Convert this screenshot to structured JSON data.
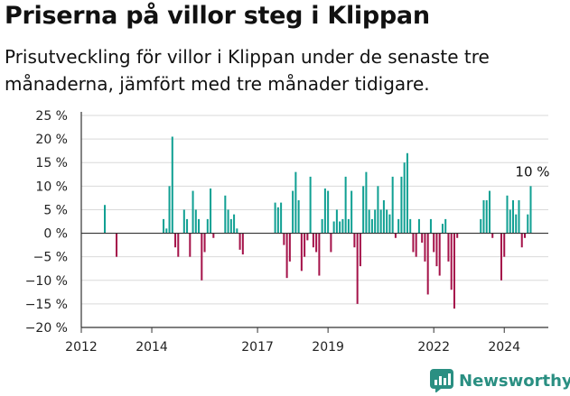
{
  "title": "Priserna på villor steg i Klippan",
  "subtitle": "Prisutveckling för villor i Klippan under de senaste tre månaderna, jämfört med tre månader tidigare.",
  "brand": {
    "name": "Newsworthy",
    "color": "#2a8f82"
  },
  "colors": {
    "positive": "#11a093",
    "negative": "#a5134a",
    "grid": "#d9d9d9",
    "axis": "#333333"
  },
  "chart_data": {
    "type": "bar",
    "title": "Priserna på villor steg i Klippan",
    "xlabel": "",
    "ylabel": "",
    "ylim": [
      -20,
      25
    ],
    "yticks": [
      25,
      20,
      15,
      10,
      5,
      0,
      -5,
      -10,
      -15,
      -20
    ],
    "ytick_labels": [
      "25 %",
      "20 %",
      "15 %",
      "10 %",
      "5 %",
      "0 %",
      "−5 %",
      "−10 %",
      "−15 %",
      "−20 %"
    ],
    "xlim": [
      "2012-01",
      "2025-04"
    ],
    "xticks": [
      "2012",
      "2014",
      "2017",
      "2019",
      "2022",
      "2024"
    ],
    "grid": true,
    "annotation": {
      "text": "10 %",
      "x": "2024-10"
    },
    "points": [
      {
        "x": "2012-09",
        "y": 6
      },
      {
        "x": "2013-01",
        "y": -5
      },
      {
        "x": "2014-05",
        "y": 3
      },
      {
        "x": "2014-06",
        "y": 1
      },
      {
        "x": "2014-07",
        "y": 10
      },
      {
        "x": "2014-08",
        "y": 20.5
      },
      {
        "x": "2014-09",
        "y": -3
      },
      {
        "x": "2014-10",
        "y": -5
      },
      {
        "x": "2014-12",
        "y": 5
      },
      {
        "x": "2015-01",
        "y": 3
      },
      {
        "x": "2015-02",
        "y": -5
      },
      {
        "x": "2015-03",
        "y": 9
      },
      {
        "x": "2015-04",
        "y": 5
      },
      {
        "x": "2015-05",
        "y": 3
      },
      {
        "x": "2015-06",
        "y": -10
      },
      {
        "x": "2015-07",
        "y": -4
      },
      {
        "x": "2015-08",
        "y": 3
      },
      {
        "x": "2015-09",
        "y": 9.5
      },
      {
        "x": "2015-10",
        "y": -1
      },
      {
        "x": "2016-02",
        "y": 8
      },
      {
        "x": "2016-03",
        "y": 5
      },
      {
        "x": "2016-04",
        "y": 3
      },
      {
        "x": "2016-05",
        "y": 4
      },
      {
        "x": "2016-06",
        "y": 1
      },
      {
        "x": "2016-07",
        "y": -3.5
      },
      {
        "x": "2016-08",
        "y": -4.5
      },
      {
        "x": "2017-07",
        "y": 6.5
      },
      {
        "x": "2017-08",
        "y": 5.5
      },
      {
        "x": "2017-09",
        "y": 6.5
      },
      {
        "x": "2017-10",
        "y": -2.5
      },
      {
        "x": "2017-11",
        "y": -9.5
      },
      {
        "x": "2017-12",
        "y": -6
      },
      {
        "x": "2018-01",
        "y": 9
      },
      {
        "x": "2018-02",
        "y": 13
      },
      {
        "x": "2018-03",
        "y": 7
      },
      {
        "x": "2018-04",
        "y": -8
      },
      {
        "x": "2018-05",
        "y": -5
      },
      {
        "x": "2018-06",
        "y": -1.5
      },
      {
        "x": "2018-07",
        "y": 12
      },
      {
        "x": "2018-08",
        "y": -3
      },
      {
        "x": "2018-09",
        "y": -4
      },
      {
        "x": "2018-10",
        "y": -9
      },
      {
        "x": "2018-11",
        "y": 3
      },
      {
        "x": "2018-12",
        "y": 9.5
      },
      {
        "x": "2019-01",
        "y": 9
      },
      {
        "x": "2019-02",
        "y": -4
      },
      {
        "x": "2019-03",
        "y": 2.5
      },
      {
        "x": "2019-04",
        "y": 5
      },
      {
        "x": "2019-05",
        "y": 2.5
      },
      {
        "x": "2019-06",
        "y": 3
      },
      {
        "x": "2019-07",
        "y": 12
      },
      {
        "x": "2019-08",
        "y": 3
      },
      {
        "x": "2019-09",
        "y": 9
      },
      {
        "x": "2019-10",
        "y": -3
      },
      {
        "x": "2019-11",
        "y": -15
      },
      {
        "x": "2019-12",
        "y": -7
      },
      {
        "x": "2020-01",
        "y": 10
      },
      {
        "x": "2020-02",
        "y": 13
      },
      {
        "x": "2020-03",
        "y": 5
      },
      {
        "x": "2020-04",
        "y": 3
      },
      {
        "x": "2020-05",
        "y": 5
      },
      {
        "x": "2020-06",
        "y": 10
      },
      {
        "x": "2020-07",
        "y": 5
      },
      {
        "x": "2020-08",
        "y": 7
      },
      {
        "x": "2020-09",
        "y": 5
      },
      {
        "x": "2020-10",
        "y": 4
      },
      {
        "x": "2020-11",
        "y": 12
      },
      {
        "x": "2020-12",
        "y": -1
      },
      {
        "x": "2021-01",
        "y": 3
      },
      {
        "x": "2021-02",
        "y": 12
      },
      {
        "x": "2021-03",
        "y": 15
      },
      {
        "x": "2021-04",
        "y": 17
      },
      {
        "x": "2021-05",
        "y": 3
      },
      {
        "x": "2021-06",
        "y": -4
      },
      {
        "x": "2021-07",
        "y": -5
      },
      {
        "x": "2021-08",
        "y": 3
      },
      {
        "x": "2021-09",
        "y": -2
      },
      {
        "x": "2021-10",
        "y": -6
      },
      {
        "x": "2021-11",
        "y": -13
      },
      {
        "x": "2021-12",
        "y": 3
      },
      {
        "x": "2022-01",
        "y": -4
      },
      {
        "x": "2022-02",
        "y": -7
      },
      {
        "x": "2022-03",
        "y": -9
      },
      {
        "x": "2022-04",
        "y": 2
      },
      {
        "x": "2022-05",
        "y": 3
      },
      {
        "x": "2022-06",
        "y": -6
      },
      {
        "x": "2022-07",
        "y": -12
      },
      {
        "x": "2022-08",
        "y": -16
      },
      {
        "x": "2022-09",
        "y": -1
      },
      {
        "x": "2023-05",
        "y": 3
      },
      {
        "x": "2023-06",
        "y": 7
      },
      {
        "x": "2023-07",
        "y": 7
      },
      {
        "x": "2023-08",
        "y": 9
      },
      {
        "x": "2023-09",
        "y": -1
      },
      {
        "x": "2023-12",
        "y": -10
      },
      {
        "x": "2024-01",
        "y": -5
      },
      {
        "x": "2024-02",
        "y": 8
      },
      {
        "x": "2024-03",
        "y": 5
      },
      {
        "x": "2024-04",
        "y": 7
      },
      {
        "x": "2024-05",
        "y": 4
      },
      {
        "x": "2024-06",
        "y": 7
      },
      {
        "x": "2024-07",
        "y": -3
      },
      {
        "x": "2024-08",
        "y": -1
      },
      {
        "x": "2024-09",
        "y": 4
      },
      {
        "x": "2024-10",
        "y": 10
      }
    ]
  }
}
